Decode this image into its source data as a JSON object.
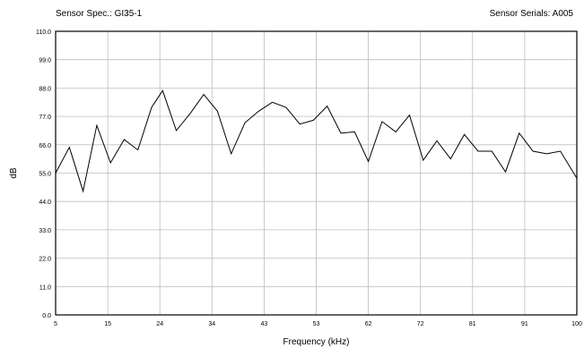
{
  "header": {
    "sensor_spec": "Sensor Spec.: GI35-1",
    "sensor_serials": "Sensor Serials: A005"
  },
  "chart_data": {
    "type": "line",
    "title": "",
    "xlabel": "Frequency (kHz)",
    "ylabel": "dB",
    "xlim": [
      5,
      100
    ],
    "ylim": [
      0,
      110
    ],
    "grid": true,
    "x_ticks": [
      "5",
      "15",
      "24",
      "34",
      "43",
      "53",
      "62",
      "72",
      "81",
      "91",
      "100"
    ],
    "y_ticks": [
      "0.0",
      "11.0",
      "22.0",
      "33.0",
      "44.0",
      "55.0",
      "66.0",
      "77.0",
      "88.0",
      "99.0",
      "110.0"
    ],
    "series": [
      {
        "x": [
          5,
          7.5,
          10,
          12.5,
          15,
          17.5,
          20,
          22.5,
          24.5,
          27,
          29.5,
          32,
          34.5,
          37,
          39.5,
          42,
          44.5,
          47,
          49.5,
          52,
          54.5,
          57,
          59.5,
          62,
          64.5,
          67,
          69.5,
          72,
          74.5,
          77,
          79.5,
          82,
          84.5,
          87,
          89.5,
          92,
          94.5,
          97,
          100
        ],
        "y": [
          55,
          65,
          48,
          73.5,
          59,
          68,
          64,
          80.5,
          87,
          71.5,
          78,
          85.5,
          79,
          62.5,
          74.5,
          79,
          82.5,
          80.5,
          74,
          75.5,
          81,
          70.5,
          71,
          59.5,
          75,
          71,
          77.5,
          60,
          67.5,
          60.5,
          70,
          63.5,
          63.5,
          55.5,
          70.5,
          63.5,
          62.5,
          63.5,
          53
        ]
      }
    ]
  }
}
